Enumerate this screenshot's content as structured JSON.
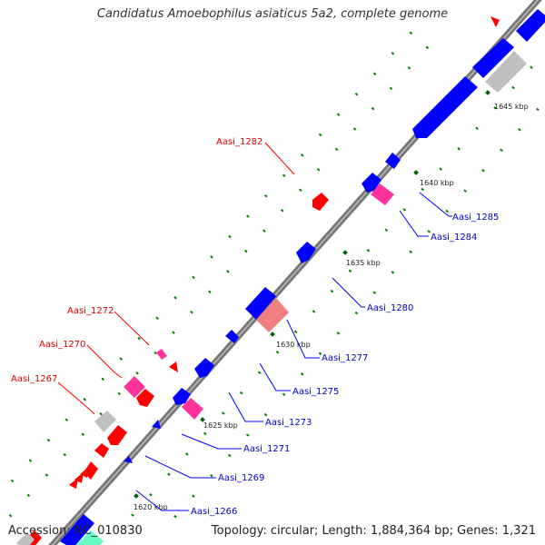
{
  "title": "Candidatus Amoebophilus asiaticus 5a2, complete genome",
  "accession": "Accession: NC_010830",
  "topology": "Topology: circular; Length: 1,884,364 bp; Genes: 1,321",
  "colors": {
    "backbone": "#808080",
    "forward_gene": "#0000ff",
    "reverse_gene": "#ff0000",
    "rna_gene": "#ff3399",
    "pseudo_gene": "#c0c0c0",
    "other_gene": "#f08080",
    "dot": "#008000",
    "forward_label": "#0000cc",
    "reverse_label": "#dd0000"
  },
  "ticks": [
    "1620 kbp",
    "1625 kbp",
    "1630 kbp",
    "1635 kbp",
    "1640 kbp",
    "1645 kbp"
  ],
  "forward_labels": [
    "Aasi_1266",
    "Aasi_1269",
    "Aasi_1271",
    "Aasi_1273",
    "Aasi_1275",
    "Aasi_1277",
    "Aasi_1280",
    "Aasi_1284",
    "Aasi_1285"
  ],
  "reverse_labels": [
    "Aasi_1267",
    "Aasi_1270",
    "Aasi_1272",
    "Aasi_1282"
  ]
}
